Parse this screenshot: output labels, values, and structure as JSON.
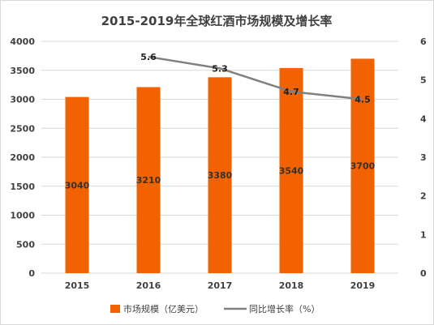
{
  "chart_data": {
    "type": "bar",
    "title": "2015-2019年全球红酒市场规模及增长率",
    "categories": [
      "2015",
      "2016",
      "2017",
      "2018",
      "2019"
    ],
    "series": [
      {
        "name": "市场规模（亿美元）",
        "type": "bar",
        "axis": "left",
        "values": [
          3040,
          3210,
          3380,
          3540,
          3700
        ],
        "labels": [
          "3040",
          "3210",
          "3380",
          "3540",
          "3700"
        ]
      },
      {
        "name": "同比增长率（%）",
        "type": "line",
        "axis": "right",
        "values": [
          null,
          5.6,
          5.3,
          4.7,
          4.5
        ],
        "labels": [
          "",
          "5.6",
          "5.3",
          "4.7",
          "4.5"
        ]
      }
    ],
    "ylim_left": [
      0,
      4000
    ],
    "yticks_left": [
      "0",
      "500",
      "1000",
      "1500",
      "2000",
      "2500",
      "3000",
      "3500",
      "4000"
    ],
    "ylim_right": [
      0,
      6
    ],
    "yticks_right": [
      "0",
      "1",
      "2",
      "3",
      "4",
      "5",
      "6"
    ],
    "grid": true,
    "legend_position": "bottom",
    "colors": {
      "bar": "#f26200",
      "line": "#808080",
      "grid": "#d9d9d9"
    }
  }
}
